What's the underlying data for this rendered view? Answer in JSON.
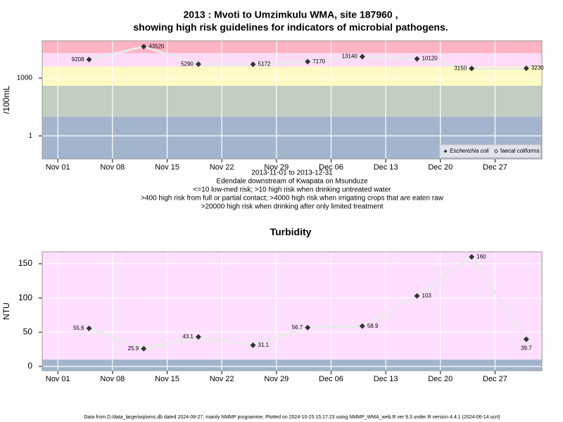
{
  "chart_data": [
    {
      "type": "line",
      "title": [
        "2013 : Mvoti to Umzimkulu WMA, site 187960 ,",
        "showing high risk guidelines for indicators of microbial pathogens."
      ],
      "ylabel": "/100mL",
      "log_y": true,
      "x": [
        "Nov 05",
        "Nov 12",
        "Nov 19",
        "Nov 26",
        "Dec 03",
        "Dec 10",
        "Dec 17",
        "Dec 24",
        "Dec 31"
      ],
      "xlim": [
        "Oct 30",
        "Jan 02"
      ],
      "xticks": [
        "Nov 01",
        "Nov 08",
        "Nov 15",
        "Nov 22",
        "Nov 29",
        "Dec 06",
        "Dec 13",
        "Dec 20",
        "Dec 27"
      ],
      "ylim": [
        0.063,
        87000
      ],
      "yticks": [
        1,
        1000
      ],
      "grid": true,
      "bands": {
        "thresholds": [
          10,
          400,
          4000,
          20000
        ],
        "colors": [
          "#a3b5cc",
          "#c3cdc1",
          "#fffac3",
          "#ffdbf8",
          "#ffb3c3"
        ]
      },
      "series": [
        {
          "name": "Escherichia coli",
          "color": "#333333",
          "values": [
            9208,
            43520,
            5290,
            5172,
            7170,
            13140,
            10120,
            3150,
            3230
          ]
        },
        {
          "name": "faecal coliforms",
          "color": "#333333",
          "values": [
            null,
            null,
            null,
            null,
            null,
            null,
            null,
            null,
            null
          ]
        }
      ],
      "legend": "bottom-right",
      "notes": [
        "2013-11-01 to 2013-12-31",
        "Edendale downstream of Kwapata on Msunduze",
        "<=10 low-med risk; >10 high risk when drinking untreated water",
        ">400 high risk from full or partial contact; >4000 high risk when irrigating crops that are eaten raw",
        ">20000 high risk when drinking after only limited treatment"
      ]
    },
    {
      "type": "line",
      "title": [
        "Turbidity"
      ],
      "ylabel": "NTU",
      "log_y": false,
      "x": [
        "Nov 05",
        "Nov 12",
        "Nov 19",
        "Nov 26",
        "Dec 03",
        "Dec 10",
        "Dec 17",
        "Dec 24",
        "Dec 31"
      ],
      "xlim": [
        "Oct 30",
        "Jan 02"
      ],
      "xticks": [
        "Nov 01",
        "Nov 08",
        "Nov 15",
        "Nov 22",
        "Nov 29",
        "Dec 06",
        "Dec 13",
        "Dec 20",
        "Dec 27"
      ],
      "ylim": [
        -6.2,
        167.5
      ],
      "yticks": [
        0,
        50,
        100,
        150
      ],
      "grid": true,
      "bands": {
        "thresholds": [
          10
        ],
        "colors": [
          "#a3b5cc",
          "#ffdfff"
        ]
      },
      "series": [
        {
          "color": "#333333",
          "values": [
            55.6,
            25.9,
            43.1,
            31.1,
            56.7,
            58.9,
            103,
            160,
            39.7
          ]
        }
      ],
      "footer": "Data from D:/data_large/wq/wms.db dated 2024-08-27, mainly NMMP programme. Plotted on 2024-10-25 15:17:23 using NMMP_WMA_web.R ver 9.3 under R version 4.4.1 (2024-06-14 ucrt)"
    }
  ]
}
